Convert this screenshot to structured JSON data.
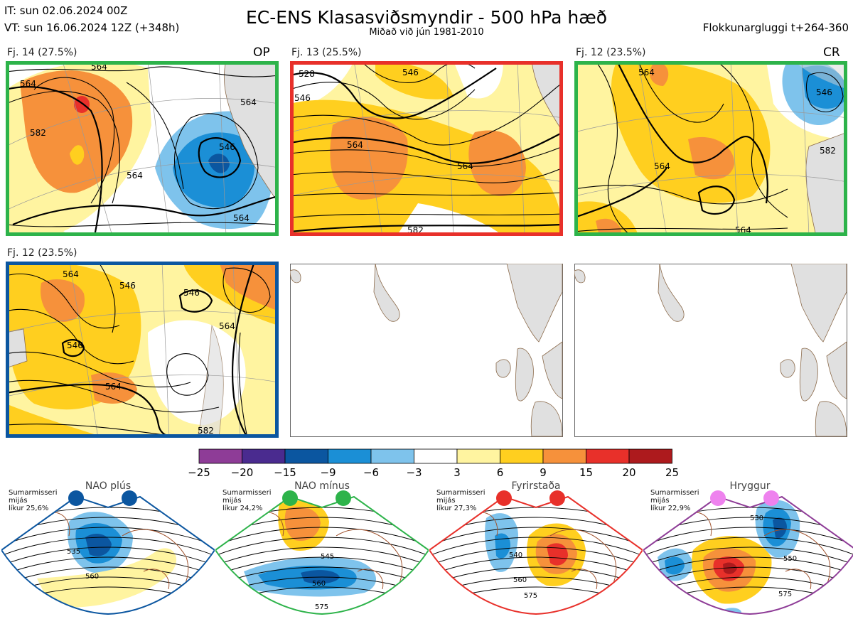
{
  "header": {
    "init_time": "IT: sun 02.06.2024 00Z",
    "valid_time": "VT: sun 16.06.2024 12Z  (+348h)",
    "title": "EC-ENS Klasasviðsmyndir - 500 hPa hæð",
    "subtitle": "Miðað við jún 1981-2010",
    "window": "Flokkunargluggi t+264-360"
  },
  "panels": [
    {
      "label": "Fj. 14 (27.5%)",
      "tag": "OP",
      "border": "#2db34a",
      "contour_labels": [
        "564",
        "582",
        "564",
        "546",
        "564",
        "564",
        "564"
      ]
    },
    {
      "label": "Fj. 13 (25.5%)",
      "tag": "",
      "border": "#e8302a",
      "contour_labels": [
        "528",
        "546",
        "546",
        "564",
        "564",
        "582"
      ]
    },
    {
      "label": "Fj. 12 (23.5%)",
      "tag": "CR",
      "border": "#2db34a",
      "contour_labels": [
        "564",
        "564",
        "546",
        "564",
        "582"
      ]
    },
    {
      "label": "Fj. 12 (23.5%)",
      "tag": "",
      "border": "#0b56a0",
      "contour_labels": [
        "564",
        "546",
        "546",
        "546",
        "564",
        "564",
        "582"
      ]
    }
  ],
  "colorbar": {
    "ticks": [
      "−25",
      "−20",
      "−15",
      "−9",
      "−6",
      "−3",
      "3",
      "6",
      "9",
      "15",
      "20",
      "25"
    ],
    "colors": [
      "#8e3c97",
      "#4a2b8f",
      "#0b56a0",
      "#1b8fd6",
      "#7ec3ec",
      "#ffffff",
      "#fff4a0",
      "#ffcf1f",
      "#f6913b",
      "#e8302a",
      "#ad1a1d"
    ]
  },
  "regimes": [
    {
      "name": "NAO plús",
      "season": "Sumarmisseri",
      "avg": "mijás",
      "prob": "líkur 25,6%",
      "dot_color": "#0b56a0",
      "frame_color": "#0b56a0",
      "contour_labels": [
        "535",
        "560"
      ]
    },
    {
      "name": "NAO mínus",
      "season": "Sumarmisseri",
      "avg": "mijás",
      "prob": "líkur 24,2%",
      "dot_color": "#2db34a",
      "frame_color": "#2db34a",
      "contour_labels": [
        "545",
        "560",
        "575"
      ]
    },
    {
      "name": "Fyrirstaða",
      "season": "Sumarmisseri",
      "avg": "mijás",
      "prob": "líkur 27,3%",
      "dot_color": "#e8302a",
      "frame_color": "#e8302a",
      "contour_labels": [
        "540",
        "560",
        "575"
      ]
    },
    {
      "name": "Hryggur",
      "season": "Sumarmisseri",
      "avg": "mijás",
      "prob": "líkur 22,9%",
      "dot_color": "#ee82ee",
      "frame_color": "#8e3c97",
      "contour_labels": [
        "530",
        "550",
        "575"
      ]
    }
  ]
}
